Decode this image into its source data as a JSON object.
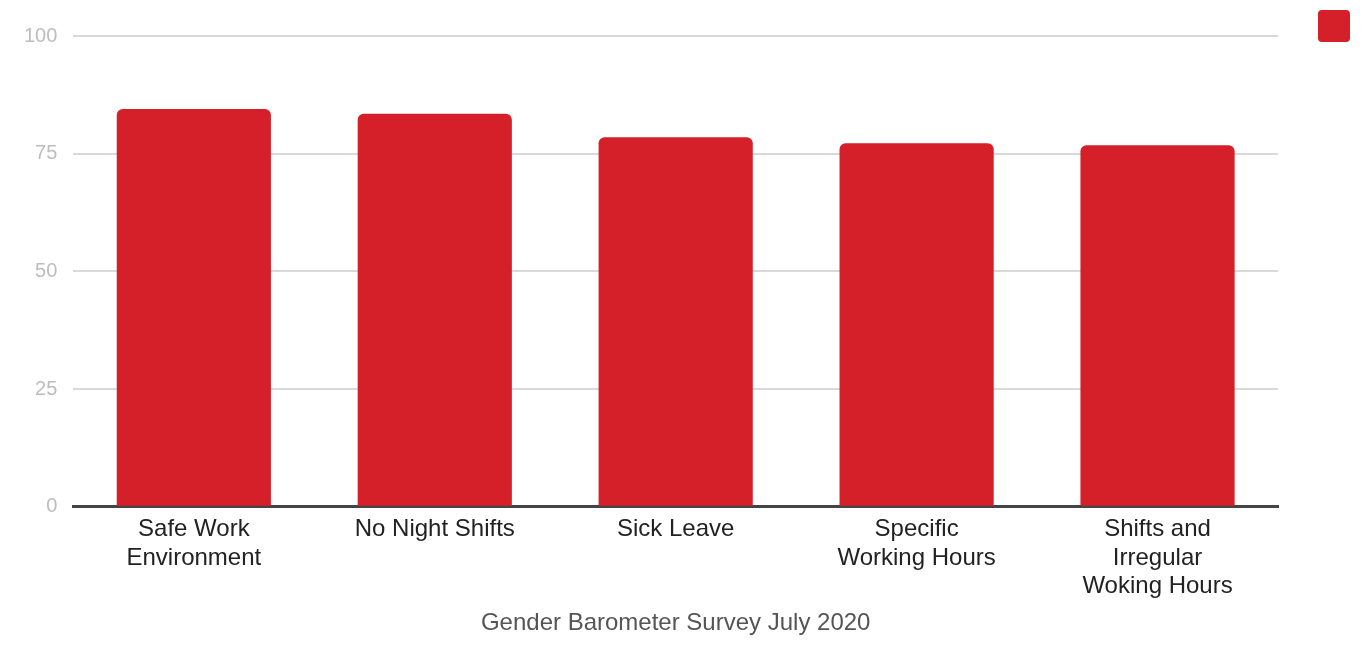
{
  "chart_data": {
    "type": "bar",
    "xlabel": "Gender Barometer Survey July 2020",
    "categories": [
      "Safe Work Environment",
      "No Night Shifts",
      "Sick Leave",
      "Specific Working Hours",
      "Shifts and Irregular Woking Hours"
    ],
    "series": [
      {
        "color": "#d52029",
        "values": [
          84.5,
          83.5,
          78.5,
          77.2,
          76.8
        ]
      }
    ],
    "ylim": [
      0,
      100
    ],
    "yticks": [
      0,
      25,
      50,
      75,
      100
    ],
    "grid": "y"
  }
}
